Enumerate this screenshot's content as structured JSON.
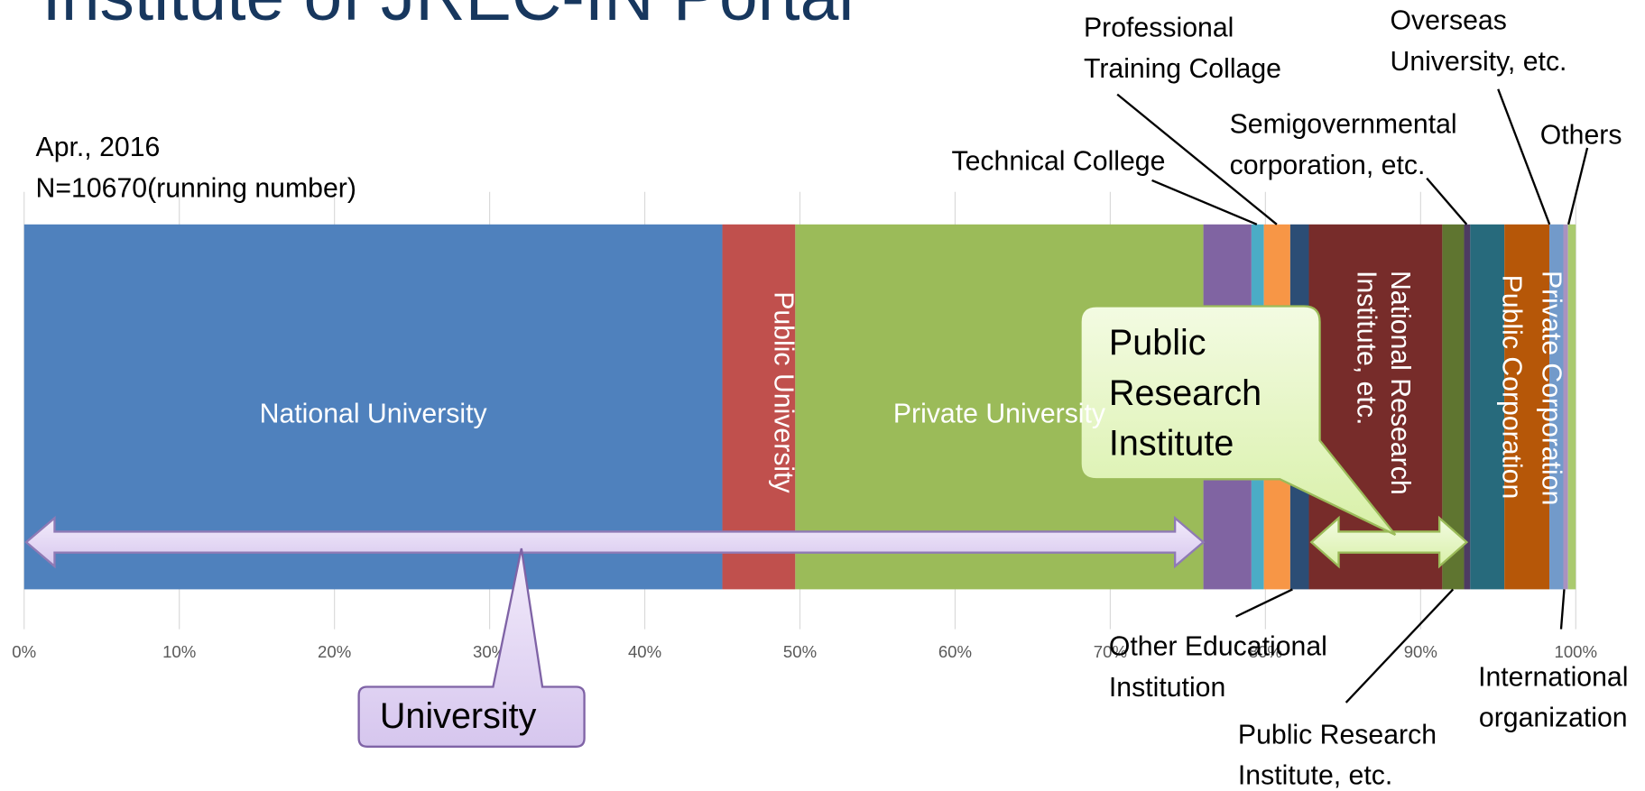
{
  "chart_data": {
    "type": "stacked-bar-horizontal",
    "title": "Institute of JREC-IN Portal",
    "annotations": [
      "Apr., 2016",
      "N=10670(running number)"
    ],
    "callouts": [
      "University",
      "Public Research Institute"
    ],
    "categories": [
      null
    ],
    "xlim": [
      0,
      100
    ],
    "xticks": [
      {
        "value": 0,
        "label": "0%"
      },
      {
        "value": 10,
        "label": "10%"
      },
      {
        "value": 20,
        "label": "20%"
      },
      {
        "value": 30,
        "label": "30%"
      },
      {
        "value": 40,
        "label": "40%"
      },
      {
        "value": 50,
        "label": "50%"
      },
      {
        "value": 60,
        "label": "60%"
      },
      {
        "value": 70,
        "label": "70%"
      },
      {
        "value": 80,
        "label": "80%"
      },
      {
        "value": 90,
        "label": "90%"
      },
      {
        "value": 100,
        "label": "100%"
      }
    ],
    "grid": true,
    "series": [
      {
        "name": "National University",
        "color": "#4f81bd",
        "values": [
          45.0
        ]
      },
      {
        "name": "Public University",
        "color": "#c0504d",
        "values": [
          4.7
        ]
      },
      {
        "name": "Private University",
        "color": "#9bbb59",
        "values": [
          26.3
        ]
      },
      {
        "name": null,
        "color": "#8064a2",
        "values": [
          3.1
        ]
      },
      {
        "name": "Technical College",
        "color": "#4bacc6",
        "values": [
          0.8
        ]
      },
      {
        "name": "Professional Training Collage",
        "color": "#f79646",
        "values": [
          1.7
        ]
      },
      {
        "name": "Other Educational Institution",
        "color": "#2c4d75",
        "values": [
          1.2
        ]
      },
      {
        "name": "National Research Institute, etc.",
        "color": "#772c2a",
        "values": [
          8.6
        ]
      },
      {
        "name": "Public Research Institute, etc.",
        "color": "#5f7530",
        "values": [
          1.4
        ]
      },
      {
        "name": "Semigovernmental corporation, etc.",
        "color": "#4d3b62",
        "values": [
          0.4
        ]
      },
      {
        "name": "Public Corporation",
        "color": "#276a7c",
        "values": [
          2.2
        ]
      },
      {
        "name": "Private Corporation",
        "color": "#b65708",
        "values": [
          2.9
        ]
      },
      {
        "name": "Overseas University, etc.",
        "color": "#729aca",
        "values": [
          0.9
        ]
      },
      {
        "name": "International organization",
        "color": "#a992c0",
        "values": [
          0.3
        ]
      },
      {
        "name": "Others",
        "color": "#aaca6f",
        "values": [
          0.5
        ]
      }
    ]
  }
}
